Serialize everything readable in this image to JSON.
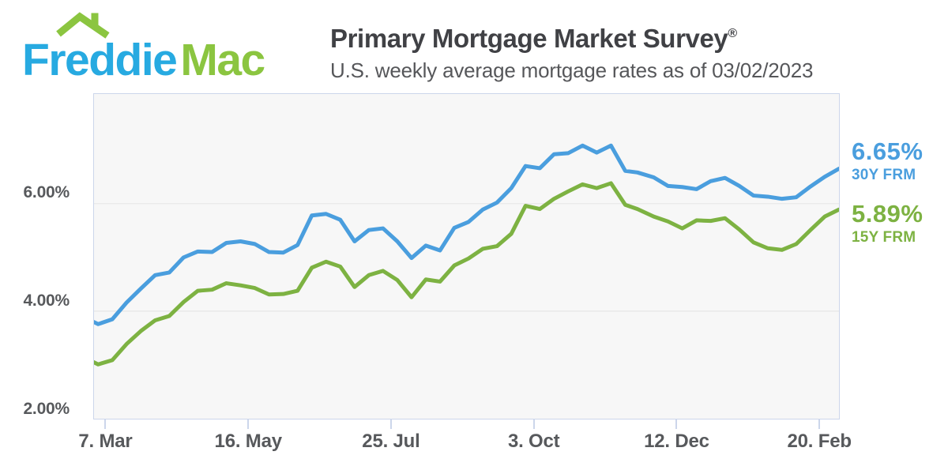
{
  "logo": {
    "word1": "Freddie",
    "word2": "Mac",
    "word1_color": "#27AAE1",
    "word2_color": "#8BC540",
    "roof_color": "#8BC540"
  },
  "header": {
    "title": "Primary Mortgage Market Survey",
    "registered_mark": "®",
    "subtitle": "U.S. weekly average mortgage rates as of 03/02/2023"
  },
  "chart_data": {
    "type": "line",
    "x_type": "date",
    "xlim": [
      "2022-03-01",
      "2023-03-02"
    ],
    "ylim": [
      2.0,
      8.04
    ],
    "grid": "horizontal",
    "legend_position": "right-annotations",
    "dates": [
      "2022-02-24",
      "2022-03-03",
      "2022-03-10",
      "2022-03-17",
      "2022-03-24",
      "2022-03-31",
      "2022-04-07",
      "2022-04-14",
      "2022-04-21",
      "2022-04-28",
      "2022-05-05",
      "2022-05-12",
      "2022-05-19",
      "2022-05-26",
      "2022-06-02",
      "2022-06-09",
      "2022-06-16",
      "2022-06-23",
      "2022-06-30",
      "2022-07-07",
      "2022-07-14",
      "2022-07-21",
      "2022-07-28",
      "2022-08-04",
      "2022-08-11",
      "2022-08-18",
      "2022-08-25",
      "2022-09-01",
      "2022-09-08",
      "2022-09-15",
      "2022-09-22",
      "2022-09-29",
      "2022-10-06",
      "2022-10-13",
      "2022-10-20",
      "2022-10-27",
      "2022-11-03",
      "2022-11-10",
      "2022-11-17",
      "2022-11-23",
      "2022-12-01",
      "2022-12-08",
      "2022-12-15",
      "2022-12-22",
      "2022-12-29",
      "2023-01-05",
      "2023-01-12",
      "2023-01-19",
      "2023-01-26",
      "2023-02-02",
      "2023-02-09",
      "2023-02-16",
      "2023-02-23",
      "2023-03-02"
    ],
    "series": [
      {
        "name": "30Y FRM",
        "color": "#4A9EDE",
        "values": [
          3.89,
          3.76,
          3.85,
          4.16,
          4.42,
          4.67,
          4.72,
          5.0,
          5.11,
          5.1,
          5.27,
          5.3,
          5.25,
          5.1,
          5.09,
          5.23,
          5.78,
          5.81,
          5.7,
          5.3,
          5.51,
          5.54,
          5.3,
          4.99,
          5.22,
          5.13,
          5.55,
          5.66,
          5.89,
          6.02,
          6.29,
          6.7,
          6.66,
          6.92,
          6.94,
          7.08,
          6.95,
          7.08,
          6.61,
          6.58,
          6.49,
          6.33,
          6.31,
          6.27,
          6.42,
          6.48,
          6.33,
          6.15,
          6.13,
          6.09,
          6.12,
          6.32,
          6.5,
          6.65
        ]
      },
      {
        "name": "15Y FRM",
        "color": "#7DB242",
        "values": [
          3.14,
          3.01,
          3.09,
          3.39,
          3.63,
          3.83,
          3.91,
          4.17,
          4.38,
          4.4,
          4.52,
          4.48,
          4.43,
          4.31,
          4.32,
          4.38,
          4.81,
          4.92,
          4.83,
          4.45,
          4.67,
          4.75,
          4.58,
          4.26,
          4.59,
          4.55,
          4.85,
          4.98,
          5.16,
          5.21,
          5.44,
          5.96,
          5.9,
          6.09,
          6.23,
          6.36,
          6.29,
          6.38,
          5.98,
          5.9,
          5.76,
          5.67,
          5.54,
          5.69,
          5.68,
          5.73,
          5.52,
          5.28,
          5.17,
          5.14,
          5.25,
          5.51,
          5.76,
          5.89
        ]
      }
    ],
    "xticks": [
      {
        "date": "2022-03-07",
        "label": "7. Mar"
      },
      {
        "date": "2022-05-16",
        "label": "16. May"
      },
      {
        "date": "2022-07-25",
        "label": "25. Jul"
      },
      {
        "date": "2022-10-03",
        "label": "3. Oct"
      },
      {
        "date": "2022-12-12",
        "label": "12. Dec"
      },
      {
        "date": "2023-02-20",
        "label": "20. Feb"
      }
    ],
    "yticks": [
      {
        "value": 2.0,
        "label": "2.00%"
      },
      {
        "value": 4.0,
        "label": "4.00%"
      },
      {
        "value": 6.0,
        "label": "6.00%"
      }
    ],
    "annotations": [
      {
        "value_label": "6.65%",
        "series_label": "30Y FRM",
        "color": "#4A9EDE"
      },
      {
        "value_label": "5.89%",
        "series_label": "15Y FRM",
        "color": "#7DB242"
      }
    ],
    "colors": {
      "plot_background": "#f7f7f7",
      "gridline": "#e2e2e2",
      "axis_border": "#ccd6eb",
      "label_text": "#57595c"
    }
  }
}
